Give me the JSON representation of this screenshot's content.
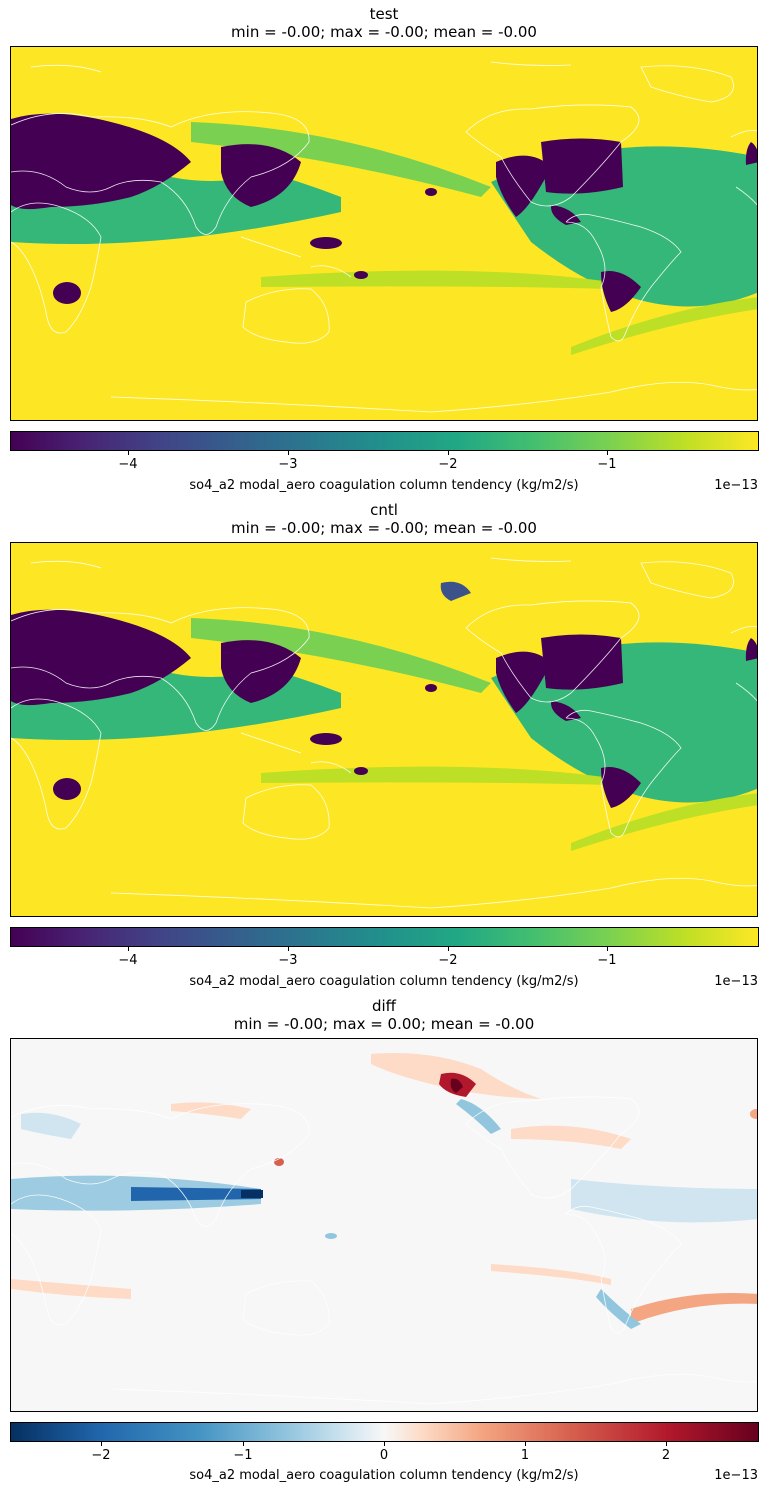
{
  "panels": [
    {
      "title": "test",
      "stats": "min = -0.00; max = -0.00; mean = -0.00",
      "colormap": "viridis",
      "colorbar_ticks": [
        "−4",
        "−3",
        "−2",
        "−1"
      ],
      "colorbar_label": "so4_a2 modal_aero coagulation column tendency (kg/m2/s)",
      "colorbar_exponent": "1e−13"
    },
    {
      "title": "cntl",
      "stats": "min = -0.00; max = -0.00; mean = -0.00",
      "colormap": "viridis",
      "colorbar_ticks": [
        "−4",
        "−3",
        "−2",
        "−1"
      ],
      "colorbar_label": "so4_a2 modal_aero coagulation column tendency (kg/m2/s)",
      "colorbar_exponent": "1e−13"
    },
    {
      "title": "diff",
      "stats": "min = -0.00; max = 0.00; mean = -0.00",
      "colormap": "RdBu_r",
      "colorbar_ticks": [
        "−2",
        "−1",
        "0",
        "1",
        "2"
      ],
      "colorbar_label": "so4_a2 modal_aero coagulation column tendency (kg/m2/s)",
      "colorbar_exponent": "1e−13"
    }
  ],
  "chart_data": [
    {
      "type": "heatmap",
      "title": "test",
      "subtitle": "min = -0.00; max = -0.00; mean = -0.00",
      "colormap": "viridis",
      "color_range": [
        -4.8,
        -0.2
      ],
      "color_scale_factor": "1e-13",
      "colorbar_ticks": [
        -4,
        -3,
        -2,
        -1
      ],
      "colorbar_label": "so4_a2 modal_aero coagulation column tendency (kg/m2/s)",
      "grid": false
    },
    {
      "type": "heatmap",
      "title": "cntl",
      "subtitle": "min = -0.00; max = -0.00; mean = -0.00",
      "colormap": "viridis",
      "color_range": [
        -4.8,
        -0.2
      ],
      "color_scale_factor": "1e-13",
      "colorbar_ticks": [
        -4,
        -3,
        -2,
        -1
      ],
      "colorbar_label": "so4_a2 modal_aero coagulation column tendency (kg/m2/s)",
      "grid": false
    },
    {
      "type": "heatmap",
      "title": "diff",
      "subtitle": "min = -0.00; max = 0.00; mean = -0.00",
      "colormap": "RdBu_r",
      "color_range": [
        -2.65,
        2.65
      ],
      "color_scale_factor": "1e-13",
      "colorbar_ticks": [
        -2,
        -1,
        0,
        1,
        2
      ],
      "colorbar_label": "so4_a2 modal_aero coagulation column tendency (kg/m2/s)",
      "grid": false
    }
  ]
}
